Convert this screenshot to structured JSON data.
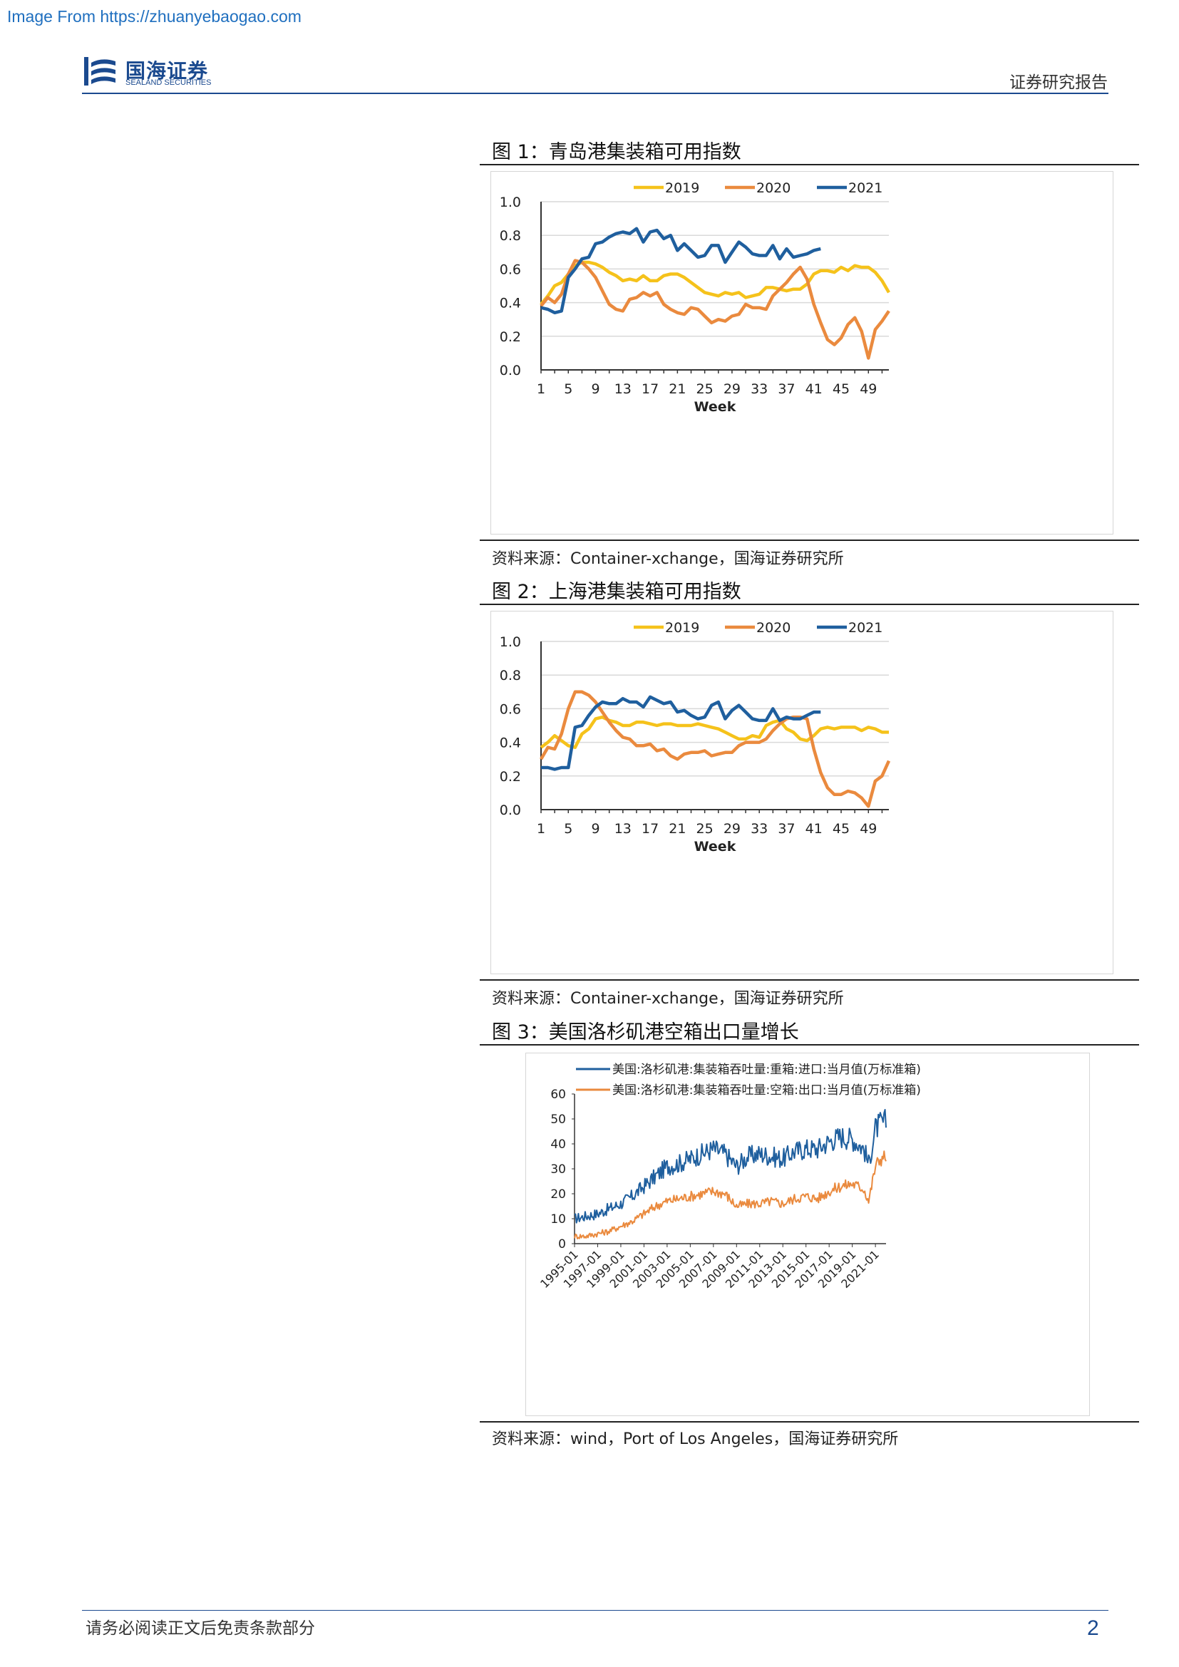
{
  "watermark": "Image From https://zhuanyebaogao.com",
  "logo": {
    "cn": "国海证券",
    "en": "SEALAND SECURITIES"
  },
  "header": {
    "right": "证券研究报告"
  },
  "footer": {
    "disclaimer": "请务必阅读正文后免责条款部分",
    "page": "2"
  },
  "colors": {
    "y2019": "#f5c21b",
    "y2020": "#ea8a3e",
    "y2021": "#1f5f9e",
    "blue": "#1f5f9e",
    "orange": "#ea8a3e"
  },
  "figures": [
    {
      "title": "图 1：青岛港集装箱可用指数",
      "source": "资料来源：Container-xchange，国海证券研究所"
    },
    {
      "title": "图 2：上海港集装箱可用指数",
      "source": "资料来源：Container-xchange，国海证券研究所"
    },
    {
      "title": "图 3：美国洛杉矶港空箱出口量增长",
      "source": "资料来源：wind，Port of Los Angeles，国海证券研究所"
    }
  ],
  "chart_data": [
    {
      "type": "line",
      "xlabel": "Week",
      "ylim": [
        0,
        1.0
      ],
      "yticks": [
        "0.0",
        "0.2",
        "0.4",
        "0.6",
        "0.8",
        "1.0"
      ],
      "xticks": [
        "1",
        "5",
        "9",
        "13",
        "17",
        "21",
        "25",
        "29",
        "33",
        "37",
        "41",
        "45",
        "49"
      ],
      "legend_position": "top",
      "grid": true,
      "series": [
        {
          "name": "2019",
          "values": [
            0.39,
            0.44,
            0.5,
            0.52,
            0.57,
            0.62,
            0.64,
            0.64,
            0.63,
            0.61,
            0.58,
            0.56,
            0.53,
            0.54,
            0.53,
            0.56,
            0.53,
            0.53,
            0.56,
            0.57,
            0.57,
            0.55,
            0.52,
            0.49,
            0.46,
            0.45,
            0.44,
            0.46,
            0.45,
            0.46,
            0.43,
            0.44,
            0.45,
            0.49,
            0.49,
            0.48,
            0.47,
            0.48,
            0.48,
            0.51,
            0.57,
            0.59,
            0.59,
            0.58,
            0.61,
            0.59,
            0.62,
            0.61,
            0.61,
            0.58,
            0.53,
            0.46
          ]
        },
        {
          "name": "2020",
          "values": [
            0.38,
            0.43,
            0.4,
            0.45,
            0.57,
            0.65,
            0.64,
            0.6,
            0.55,
            0.47,
            0.39,
            0.36,
            0.35,
            0.42,
            0.43,
            0.46,
            0.44,
            0.46,
            0.39,
            0.36,
            0.34,
            0.33,
            0.37,
            0.36,
            0.32,
            0.28,
            0.3,
            0.29,
            0.32,
            0.33,
            0.39,
            0.37,
            0.37,
            0.36,
            0.44,
            0.48,
            0.52,
            0.57,
            0.61,
            0.54,
            0.39,
            0.28,
            0.18,
            0.15,
            0.19,
            0.27,
            0.31,
            0.23,
            0.07,
            0.24,
            0.29,
            0.35
          ]
        },
        {
          "name": "2021",
          "values": [
            0.37,
            0.36,
            0.34,
            0.35,
            0.55,
            0.6,
            0.66,
            0.67,
            0.75,
            0.76,
            0.79,
            0.81,
            0.82,
            0.81,
            0.84,
            0.76,
            0.82,
            0.83,
            0.78,
            0.8,
            0.71,
            0.75,
            0.71,
            0.67,
            0.68,
            0.74,
            0.74,
            0.64,
            0.7,
            0.76,
            0.73,
            0.69,
            0.68,
            0.68,
            0.74,
            0.66,
            0.72,
            0.67,
            0.68,
            0.69,
            0.71,
            0.72
          ]
        }
      ]
    },
    {
      "type": "line",
      "xlabel": "Week",
      "ylim": [
        0,
        1.0
      ],
      "yticks": [
        "0.0",
        "0.2",
        "0.4",
        "0.6",
        "0.8",
        "1.0"
      ],
      "xticks": [
        "1",
        "5",
        "9",
        "13",
        "17",
        "21",
        "25",
        "29",
        "33",
        "37",
        "41",
        "45",
        "49"
      ],
      "legend_position": "top",
      "grid": true,
      "series": [
        {
          "name": "2019",
          "values": [
            0.37,
            0.4,
            0.44,
            0.41,
            0.38,
            0.37,
            0.45,
            0.48,
            0.54,
            0.55,
            0.53,
            0.52,
            0.5,
            0.5,
            0.52,
            0.52,
            0.51,
            0.5,
            0.51,
            0.51,
            0.5,
            0.5,
            0.5,
            0.51,
            0.5,
            0.49,
            0.48,
            0.46,
            0.44,
            0.42,
            0.42,
            0.44,
            0.43,
            0.5,
            0.52,
            0.53,
            0.48,
            0.46,
            0.42,
            0.41,
            0.44,
            0.48,
            0.49,
            0.48,
            0.49,
            0.49,
            0.49,
            0.47,
            0.49,
            0.48,
            0.46,
            0.46
          ]
        },
        {
          "name": "2020",
          "values": [
            0.3,
            0.37,
            0.36,
            0.45,
            0.6,
            0.7,
            0.7,
            0.68,
            0.64,
            0.58,
            0.52,
            0.47,
            0.43,
            0.42,
            0.38,
            0.38,
            0.39,
            0.35,
            0.36,
            0.32,
            0.3,
            0.33,
            0.34,
            0.34,
            0.35,
            0.32,
            0.33,
            0.34,
            0.34,
            0.38,
            0.4,
            0.4,
            0.4,
            0.42,
            0.47,
            0.51,
            0.54,
            0.55,
            0.55,
            0.54,
            0.36,
            0.22,
            0.13,
            0.09,
            0.09,
            0.11,
            0.1,
            0.07,
            0.02,
            0.17,
            0.2,
            0.29
          ]
        },
        {
          "name": "2021",
          "values": [
            0.25,
            0.25,
            0.24,
            0.25,
            0.25,
            0.49,
            0.5,
            0.56,
            0.61,
            0.64,
            0.63,
            0.63,
            0.66,
            0.64,
            0.64,
            0.61,
            0.67,
            0.65,
            0.63,
            0.64,
            0.58,
            0.59,
            0.56,
            0.54,
            0.55,
            0.62,
            0.64,
            0.54,
            0.59,
            0.62,
            0.58,
            0.54,
            0.53,
            0.53,
            0.6,
            0.53,
            0.55,
            0.54,
            0.54,
            0.56,
            0.58,
            0.58
          ]
        }
      ]
    },
    {
      "type": "line",
      "ylim": [
        0,
        60
      ],
      "yticks": [
        "0",
        "10",
        "20",
        "30",
        "40",
        "50",
        "60"
      ],
      "xticks": [
        "1995-01",
        "1997-01",
        "1999-01",
        "2001-01",
        "2003-01",
        "2005-01",
        "2007-01",
        "2009-01",
        "2011-01",
        "2013-01",
        "2015-01",
        "2017-01",
        "2019-01",
        "2021-01"
      ],
      "x_range": [
        "1995-01",
        "2021-12"
      ],
      "legend_position": "top",
      "grid": false,
      "series": [
        {
          "name": "美国:洛杉矶港:集装箱吞吐量:重箱:进口:当月值(万标准箱)",
          "x": [
            "1995-01",
            "1996-01",
            "1997-01",
            "1998-01",
            "1999-01",
            "2000-01",
            "2001-01",
            "2002-01",
            "2003-01",
            "2004-01",
            "2005-01",
            "2006-01",
            "2007-01",
            "2008-01",
            "2009-01",
            "2010-01",
            "2011-01",
            "2012-01",
            "2013-01",
            "2014-01",
            "2015-01",
            "2016-01",
            "2017-01",
            "2018-01",
            "2019-01",
            "2020-01",
            "2020-06",
            "2021-01",
            "2021-06",
            "2021-12"
          ],
          "values": [
            10,
            11,
            12,
            14,
            16,
            19,
            23,
            27,
            31,
            32,
            34,
            36,
            38,
            36,
            31,
            35,
            36,
            35,
            34,
            37,
            38,
            38,
            41,
            43,
            42,
            38,
            32,
            46,
            48,
            49
          ]
        },
        {
          "name": "美国:洛杉矶港:集装箱吞吐量:空箱:出口:当月值(万标准箱)",
          "x": [
            "1995-01",
            "1996-01",
            "1997-01",
            "1998-01",
            "1999-01",
            "2000-01",
            "2001-01",
            "2002-01",
            "2003-01",
            "2004-01",
            "2005-01",
            "2006-01",
            "2007-01",
            "2008-01",
            "2009-01",
            "2010-01",
            "2011-01",
            "2012-01",
            "2013-01",
            "2014-01",
            "2015-01",
            "2016-01",
            "2017-01",
            "2018-01",
            "2019-01",
            "2020-01",
            "2020-06",
            "2021-01",
            "2021-06",
            "2021-12"
          ],
          "values": [
            3,
            3,
            4,
            5,
            7,
            9,
            12,
            15,
            17,
            18,
            19,
            20,
            21,
            20,
            15,
            16,
            16,
            17,
            16,
            18,
            19,
            18,
            21,
            23,
            24,
            22,
            17,
            31,
            34,
            35
          ]
        }
      ]
    }
  ]
}
